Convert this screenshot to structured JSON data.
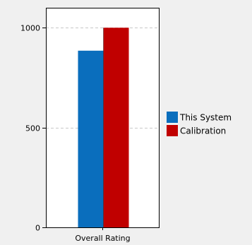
{
  "colors": {
    "page_background": "#f0f0f0",
    "plot_background": "#ffffff",
    "axis": "#000000",
    "gridline": "#c8c8c8",
    "this_system": "#0a6ebd",
    "calibration": "#c00000"
  },
  "chart_data": {
    "type": "bar",
    "title": "",
    "xlabel": "",
    "ylabel": "",
    "categories": [
      "Overall Rating"
    ],
    "series": [
      {
        "name": "This System",
        "values": [
          885
        ],
        "color": "#0a6ebd"
      },
      {
        "name": "Calibration",
        "values": [
          1000
        ],
        "color": "#c00000"
      }
    ],
    "ylim": [
      0,
      1100
    ],
    "yticks": [
      {
        "value": 0,
        "label": "0"
      },
      {
        "value": 500,
        "label": "500"
      },
      {
        "value": 1000,
        "label": "1000"
      }
    ],
    "grid": "horizontal dashed",
    "legend_position": "right"
  }
}
